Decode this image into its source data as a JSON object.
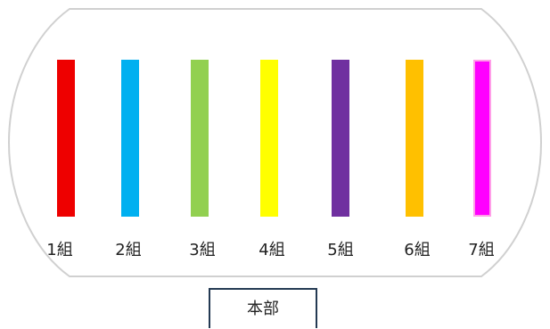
{
  "lanes": [
    {
      "label": "1組",
      "color": "#ee0000"
    },
    {
      "label": "2組",
      "color": "#00b0f0"
    },
    {
      "label": "3組",
      "color": "#92d050"
    },
    {
      "label": "4組",
      "color": "#ffff00"
    },
    {
      "label": "5組",
      "color": "#7030a0"
    },
    {
      "label": "6組",
      "color": "#ffc000"
    },
    {
      "label": "7組",
      "color": "#ff00ff",
      "outline": "#ff9ee8"
    }
  ],
  "headquarters": {
    "label": "本部"
  },
  "track_outline_color": "#d0d0d0"
}
